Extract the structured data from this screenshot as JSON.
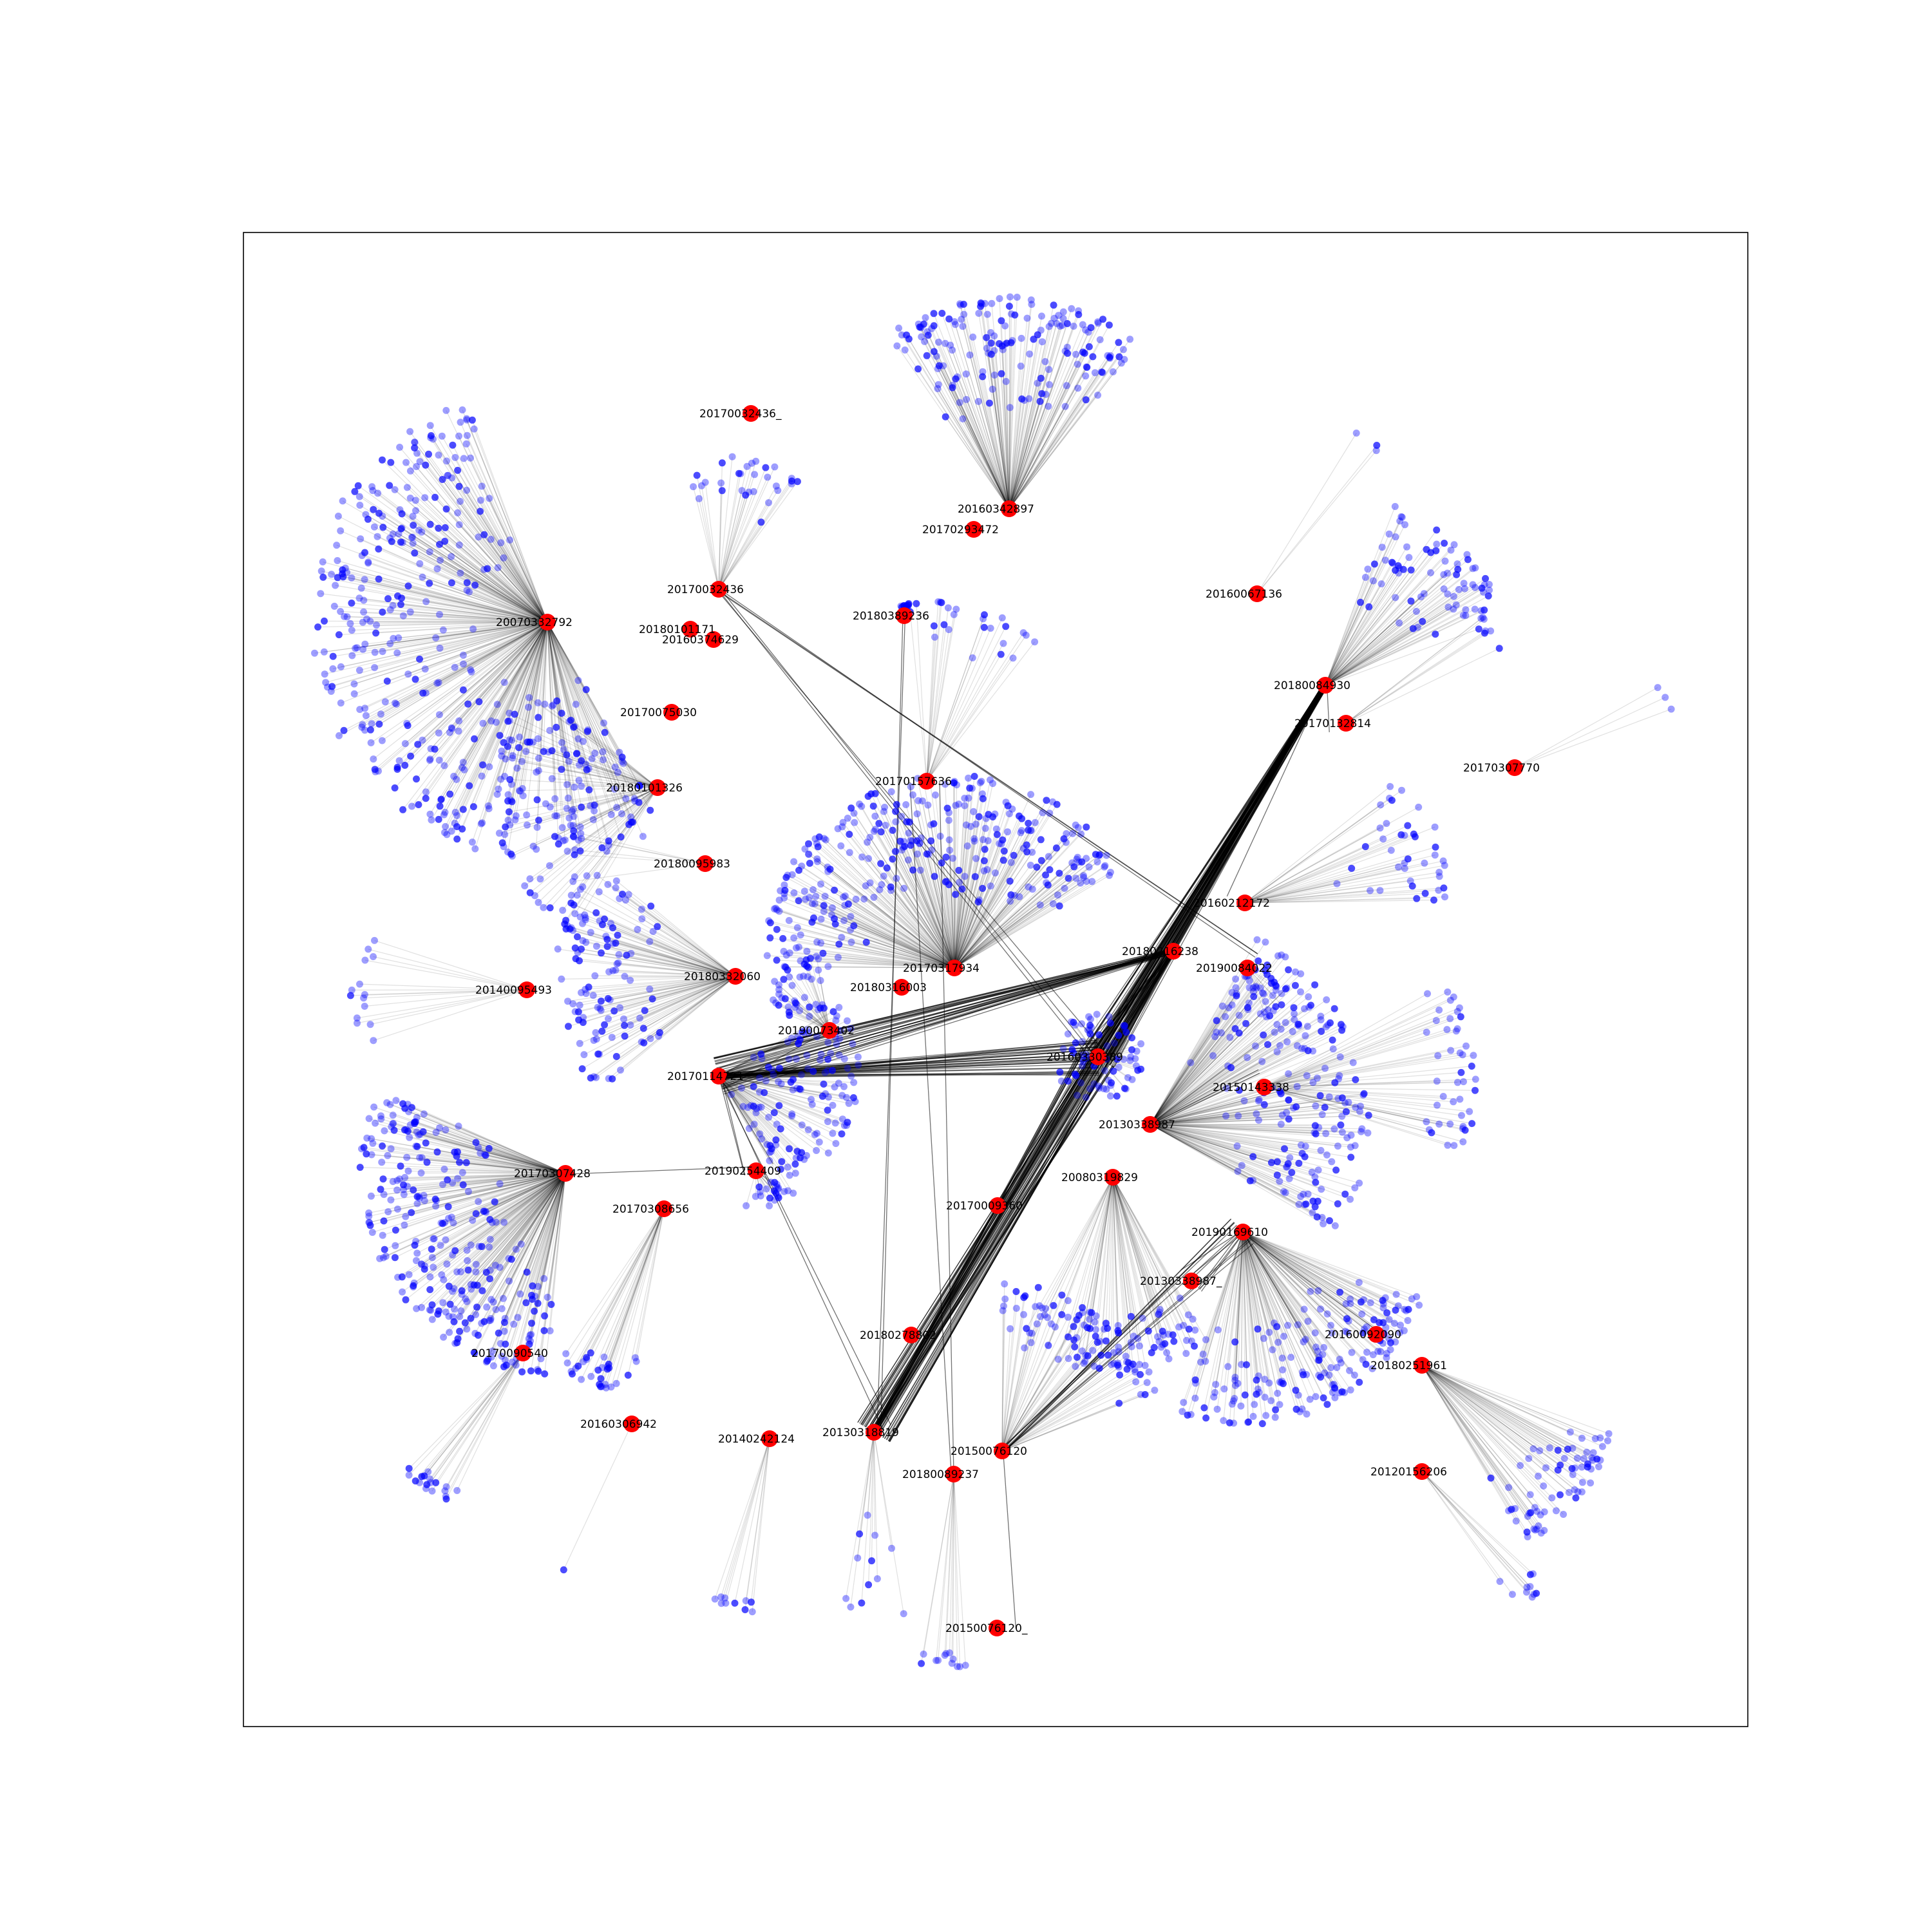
{
  "colors": {
    "hub": "#ff0000",
    "leaf": "#0000ff",
    "edge": "#000000",
    "frame": "#000000",
    "background": "#ffffff"
  },
  "nodes": [
    {
      "id": "20070332792",
      "label": "20070332792",
      "cluster": {
        "count": 420,
        "start": 60,
        "end": 250,
        "rmin": 90,
        "rmax": 370
      }
    },
    {
      "id": "20160342897",
      "label": "20160342897",
      "cluster": {
        "count": 170,
        "start": 235,
        "end": 308,
        "rmin": 150,
        "rmax": 330
      }
    },
    {
      "id": "20170032436_",
      "label": "20170032436_"
    },
    {
      "id": "20170293472",
      "label": "20170293472"
    },
    {
      "id": "20170032436",
      "label": "20170032436",
      "cluster": {
        "count": 30,
        "start": 255,
        "end": 310,
        "rmin": 110,
        "rmax": 210
      }
    },
    {
      "id": "20180101171",
      "label": "20180101171"
    },
    {
      "id": "20160374629",
      "label": "20160374629"
    },
    {
      "id": "20180389236",
      "label": "20180389236",
      "cluster": {
        "count": 16,
        "start": 250,
        "end": 300,
        "rmin": 5,
        "rmax": 20
      }
    },
    {
      "id": "20160067136",
      "label": "20160067136",
      "cluster": {
        "count": 3,
        "start": 300,
        "end": 310,
        "rmin": 280,
        "rmax": 300
      }
    },
    {
      "id": "20180084930",
      "label": "20180084930",
      "cluster": {
        "count": 80,
        "start": 290,
        "end": 340,
        "rmin": 130,
        "rmax": 300
      }
    },
    {
      "id": "20170132814",
      "label": "20170132814",
      "cluster": {
        "count": 7,
        "start": 320,
        "end": 340,
        "rmin": 250,
        "rmax": 270
      }
    },
    {
      "id": "20170307770",
      "label": "20170307770",
      "cluster": {
        "count": 3,
        "start": 330,
        "end": 340,
        "rmin": 250,
        "rmax": 260
      }
    },
    {
      "id": "20170075030",
      "label": "20170075030"
    },
    {
      "id": "20180101326",
      "label": "20180101326",
      "cluster": {
        "count": 80,
        "start": 120,
        "end": 220,
        "rmin": 80,
        "rmax": 260
      }
    },
    {
      "id": "20170157636",
      "label": "20170157636",
      "cluster": {
        "count": 25,
        "start": 260,
        "end": 310,
        "rmin": 200,
        "rmax": 280
      }
    },
    {
      "id": "20180095983",
      "label": "20180095983",
      "cluster": {
        "count": 6,
        "start": 170,
        "end": 195,
        "rmin": 190,
        "rmax": 210
      }
    },
    {
      "id": "20160212172",
      "label": "20160212172",
      "cluster": {
        "count": 40,
        "start": 320,
        "end": 360,
        "rmin": 120,
        "rmax": 320
      }
    },
    {
      "id": "20180216238",
      "label": "20180216238"
    },
    {
      "id": "20190084022",
      "label": "20190084022",
      "cluster": {
        "count": 10,
        "start": 30,
        "end": 80,
        "rmin": 20,
        "rmax": 80
      }
    },
    {
      "id": "20170317934",
      "label": "20170317934",
      "cluster": {
        "count": 330,
        "start": 180,
        "end": 330,
        "rmin": 100,
        "rmax": 300
      }
    },
    {
      "id": "20140095493",
      "label": "20140095493",
      "cluster": {
        "count": 14,
        "start": 160,
        "end": 200,
        "rmin": 240,
        "rmax": 275
      }
    },
    {
      "id": "20180332060",
      "label": "20180332060",
      "cluster": {
        "count": 120,
        "start": 140,
        "end": 220,
        "rmin": 120,
        "rmax": 280
      }
    },
    {
      "id": "20180316003",
      "label": "20180316003"
    },
    {
      "id": "20190073402",
      "label": "20190073402",
      "cluster": {
        "count": 40,
        "start": 200,
        "end": 260,
        "rmin": 20,
        "rmax": 120
      }
    },
    {
      "id": "20160330389",
      "label": "20160330389",
      "cluster": {
        "count": 75,
        "start": 0,
        "end": 360,
        "rmin": 5,
        "rmax": 70
      }
    },
    {
      "id": "20170114721",
      "label": "20170114721",
      "cluster": {
        "count": 140,
        "start": 330,
        "end": 420,
        "rmin": 20,
        "rmax": 220
      }
    },
    {
      "id": "20150143338",
      "label": "20150143338",
      "cluster": {
        "count": 45,
        "start": 330,
        "end": 380,
        "rmin": 250,
        "rmax": 330
      }
    },
    {
      "id": "20130338987",
      "label": "20130338987",
      "cluster": {
        "count": 230,
        "start": 300,
        "end": 390,
        "rmin": 100,
        "rmax": 340
      }
    },
    {
      "id": "20170307428",
      "label": "20170307428",
      "cluster": {
        "count": 300,
        "start": 95,
        "end": 205,
        "rmin": 100,
        "rmax": 320
      }
    },
    {
      "id": "20190254409",
      "label": "20190254409",
      "cluster": {
        "count": 20,
        "start": 30,
        "end": 110,
        "rmin": 20,
        "rmax": 60
      }
    },
    {
      "id": "20080319829",
      "label": "20080319829",
      "cluster": {
        "count": 80,
        "start": 60,
        "end": 120,
        "rmin": 200,
        "rmax": 300
      }
    },
    {
      "id": "20170308656",
      "label": "20170308656",
      "cluster": {
        "count": 30,
        "start": 100,
        "end": 125,
        "rmin": 220,
        "rmax": 300
      }
    },
    {
      "id": "20170009360",
      "label": "20170009360"
    },
    {
      "id": "20190169610",
      "label": "20190169610",
      "cluster": {
        "count": 180,
        "start": 20,
        "end": 110,
        "rmin": 130,
        "rmax": 300
      }
    },
    {
      "id": "20130338987_",
      "label": "20130338987_"
    },
    {
      "id": "20170090540",
      "label": "20170090540",
      "cluster": {
        "count": 18,
        "start": 115,
        "end": 135,
        "rmin": 230,
        "rmax": 260
      }
    },
    {
      "id": "20180278802",
      "label": "20180278802"
    },
    {
      "id": "20160092090",
      "label": "20160092090"
    },
    {
      "id": "20180251961",
      "label": "20180251961",
      "cluster": {
        "count": 70,
        "start": 20,
        "end": 60,
        "rmin": 200,
        "rmax": 320
      }
    },
    {
      "id": "20160306942",
      "label": "20160306942",
      "cluster": {
        "count": 1,
        "start": 115,
        "end": 115,
        "rmin": 250,
        "rmax": 250
      }
    },
    {
      "id": "20140242124",
      "label": "20140242124",
      "cluster": {
        "count": 10,
        "start": 95,
        "end": 110,
        "rmin": 240,
        "rmax": 270
      }
    },
    {
      "id": "20130318819",
      "label": "20130318819",
      "cluster": {
        "count": 12,
        "start": 80,
        "end": 100,
        "rmin": 120,
        "rmax": 290
      }
    },
    {
      "id": "20150076120",
      "label": "20150076120",
      "cluster": {
        "count": 60,
        "start": 270,
        "end": 340,
        "rmin": 170,
        "rmax": 260
      }
    },
    {
      "id": "20180089237",
      "label": "20180089237",
      "cluster": {
        "count": 12,
        "start": 85,
        "end": 100,
        "rmin": 270,
        "rmax": 300
      }
    },
    {
      "id": "20120156206",
      "label": "20120156206",
      "cluster": {
        "count": 10,
        "start": 40,
        "end": 55,
        "rmin": 200,
        "rmax": 260
      }
    },
    {
      "id": "20150076120_",
      "label": "20150076120_"
    }
  ],
  "links": [
    {
      "from": "20180084930",
      "to": "20160330389",
      "weight": 40
    },
    {
      "from": "20180084930",
      "to": "20130318819",
      "weight": 40
    },
    {
      "from": "20180216238",
      "to": "20170114721",
      "weight": 30
    },
    {
      "from": "20180216238",
      "to": "20160330389",
      "weight": 20
    },
    {
      "from": "20170114721",
      "to": "20160330389",
      "weight": 30
    },
    {
      "from": "20130318819",
      "to": "20160330389",
      "weight": 35
    },
    {
      "from": "20150076120",
      "to": "20190169610",
      "weight": 10
    },
    {
      "from": "20190169610",
      "to": "20130338987_",
      "weight": 6
    },
    {
      "from": "20180389236",
      "to": "20130318819",
      "weight": 2
    },
    {
      "from": "20170032436",
      "to": "20160330389",
      "weight": 3
    },
    {
      "from": "20170032436",
      "to": "20190084022",
      "weight": 3
    },
    {
      "from": "20170114721",
      "to": "20190254409",
      "weight": 3
    },
    {
      "from": "20170114721",
      "to": "20130318819",
      "weight": 2
    },
    {
      "from": "20180089237",
      "to": "20170157636",
      "weight": 2
    },
    {
      "from": "20170307428",
      "to": "20190254409",
      "weight": 1
    },
    {
      "from": "20130338987",
      "to": "20150143338",
      "weight": 2
    },
    {
      "from": "20180084930",
      "to": "20170132814",
      "weight": 1
    },
    {
      "from": "20180084930",
      "to": "20160212172",
      "weight": 1
    },
    {
      "from": "20190169610",
      "to": "20160092090",
      "weight": 1
    },
    {
      "from": "20170009360",
      "to": "20160330389",
      "weight": 1
    },
    {
      "from": "20190073402",
      "to": "20170114721",
      "weight": 2
    },
    {
      "from": "20150076120",
      "to": "20150076120_",
      "weight": 1
    }
  ]
}
